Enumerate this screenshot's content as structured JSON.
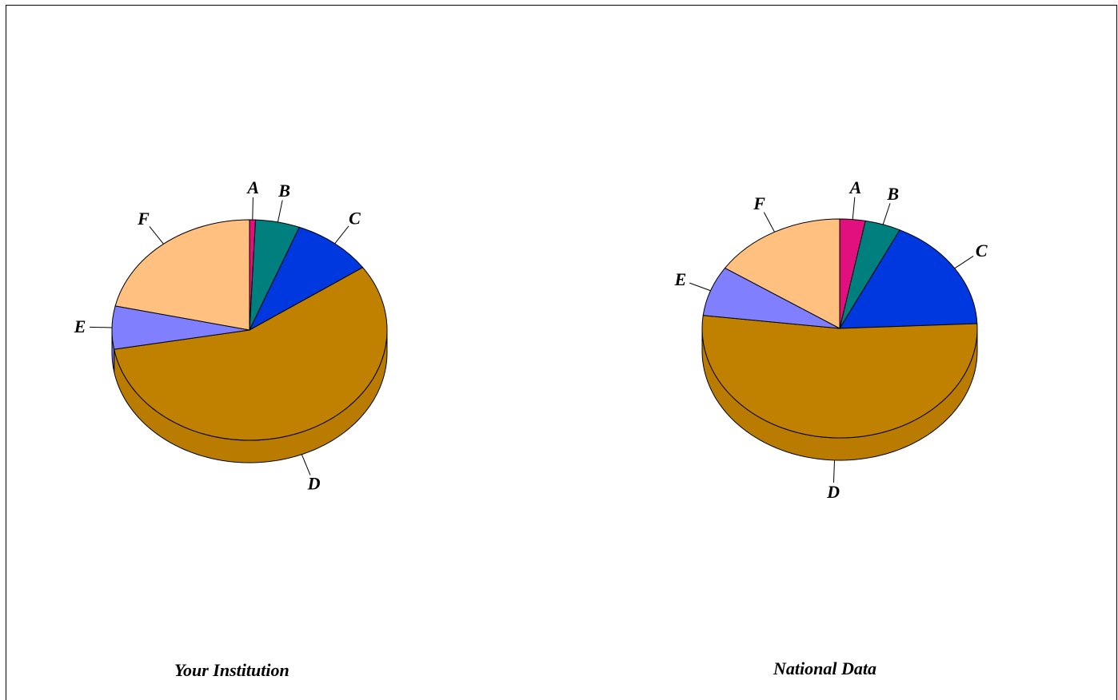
{
  "chart_data": [
    {
      "type": "pie",
      "title": "Your Institution",
      "categories": [
        "A",
        "B",
        "C",
        "D",
        "E",
        "F"
      ],
      "values": [
        0.7,
        5.2,
        9.5,
        56.8,
        6.3,
        21.5
      ],
      "colors": [
        "#E0107E",
        "#007F7F",
        "#0038E0",
        "#C08000",
        "#8080FF",
        "#FFC080"
      ],
      "style": "3d"
    },
    {
      "type": "pie",
      "title": "National Data",
      "categories": [
        "A",
        "B",
        "C",
        "D",
        "E",
        "F"
      ],
      "values": [
        3.0,
        4.2,
        17.1,
        52.6,
        7.4,
        15.7
      ],
      "colors": [
        "#E0107E",
        "#007F7F",
        "#0038E0",
        "#C08000",
        "#8080FF",
        "#FFC080"
      ],
      "style": "3d"
    }
  ]
}
